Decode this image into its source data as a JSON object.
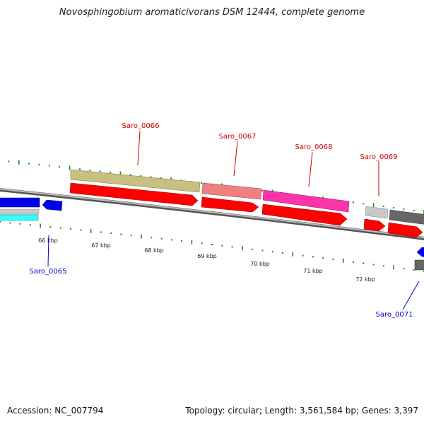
{
  "title": "Novosphingobium aromaticivorans DSM 12444, complete genome",
  "footer": {
    "accession": "Accession: NC_007794",
    "summary": "Topology: circular; Length: 3,561,584 bp; Genes: 3,397"
  },
  "scale_labels": [
    {
      "kbp": 66,
      "text": "66 kbp"
    },
    {
      "kbp": 67,
      "text": "67 kbp"
    },
    {
      "kbp": 68,
      "text": "68 kbp"
    },
    {
      "kbp": 69,
      "text": "69 kbp"
    },
    {
      "kbp": 70,
      "text": "70 kbp"
    },
    {
      "kbp": 71,
      "text": "71 kbp"
    },
    {
      "kbp": 72,
      "text": "72 kbp"
    }
  ],
  "genes": [
    {
      "id": "saro_0065",
      "label": "Saro_0065",
      "strand": "minus",
      "label_color": "#0000cc"
    },
    {
      "id": "saro_0066",
      "label": "Saro_0066",
      "strand": "plus",
      "label_color": "#cc0000"
    },
    {
      "id": "saro_0067",
      "label": "Saro_0067",
      "strand": "plus",
      "label_color": "#cc0000"
    },
    {
      "id": "saro_0068",
      "label": "Saro_0068",
      "strand": "plus",
      "label_color": "#cc0000"
    },
    {
      "id": "saro_0069",
      "label": "Saro_0069",
      "strand": "plus",
      "label_color": "#cc0000"
    },
    {
      "id": "saro_0071",
      "label": "Saro_0071",
      "strand": "minus",
      "label_color": "#0000cc"
    }
  ],
  "colors": {
    "tick": "#228822",
    "backbone": "#888888",
    "cds_plus": "#ff0000",
    "cds_minus": "#0000ff",
    "cog_olive": "#c8c080",
    "cog_salmon": "#f08080",
    "cog_magenta": "#ff33aa",
    "cog_light_gray": "#c8c8c8",
    "cog_dark_gray": "#666666",
    "cog_cyan": "#33ffff"
  }
}
